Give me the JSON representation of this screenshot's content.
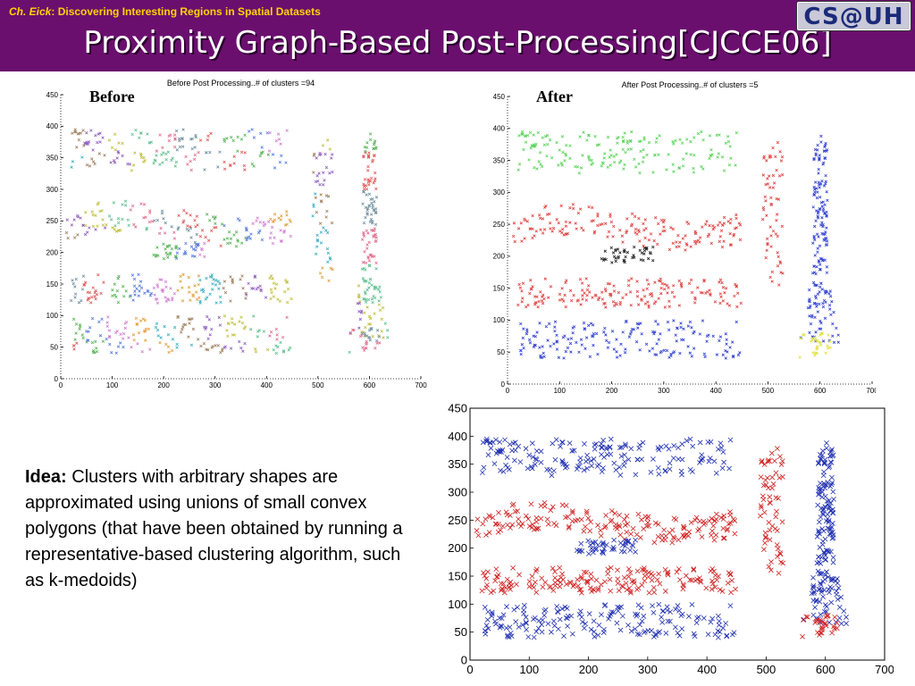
{
  "header": {
    "subtitle_author": "Ch. Eick",
    "subtitle_rest": ": Discovering Interesting Regions in Spatial Datasets",
    "title": "Proximity Graph-Based Post-Processing[CJCCE06]",
    "logo_text": "CS@UH"
  },
  "labels": {
    "before": "Before",
    "after": "After"
  },
  "idea": {
    "lead": "Idea:",
    "text": " Clusters with arbitrary shapes are approximated  using unions of small convex polygons (that have been obtained by running a representative-based clustering algorithm, such as k-medoids)"
  },
  "chart_data": [
    {
      "type": "scatter",
      "title": "Before Post Processing..# of clusters =94",
      "xlim": [
        0,
        700
      ],
      "ylim": [
        0,
        450
      ],
      "xticks": [
        0,
        100,
        200,
        300,
        400,
        500,
        600,
        700
      ],
      "yticks": [
        0,
        50,
        100,
        150,
        200,
        250,
        300,
        350,
        400,
        450
      ],
      "marker": "x",
      "num_clusters": 94,
      "series_note": "",
      "colors": [
        "#e05a5a",
        "#5ab45a",
        "#5a7be0",
        "#d080d0",
        "#e0a040",
        "#40b0c0",
        "#a08060",
        "#9060c0",
        "#c0c040",
        "#60c090",
        "#e07090",
        "#7090a0"
      ]
    },
    {
      "type": "scatter",
      "title": "After Post Processing..# of clusters =5",
      "xlim": [
        0,
        700
      ],
      "ylim": [
        0,
        450
      ],
      "xticks": [
        0,
        100,
        200,
        300,
        400,
        500,
        600,
        700
      ],
      "yticks": [
        0,
        50,
        100,
        150,
        200,
        250,
        300,
        350,
        400,
        450
      ],
      "marker": "x",
      "num_clusters": 5,
      "series_colors": {
        "top_band": "#5ad45a",
        "middle_bands": "#e04040",
        "small_cluster": "#222222",
        "bottom_band_and_tower": "#3040d0",
        "ring": "#e0e040"
      }
    },
    {
      "type": "scatter",
      "title": "",
      "xlim": [
        0,
        700
      ],
      "ylim": [
        0,
        450
      ],
      "xticks": [
        0,
        100,
        200,
        300,
        400,
        500,
        600,
        700
      ],
      "yticks": [
        0,
        50,
        100,
        150,
        200,
        250,
        300,
        350,
        400,
        450
      ],
      "marker": "x",
      "series_colors": {
        "blue": "#2030b0",
        "red": "#d02020"
      }
    }
  ],
  "regions": [
    {
      "name": "top-band",
      "x": [
        20,
        440
      ],
      "y": [
        330,
        395
      ],
      "group_after": "top_band",
      "group_orig": "blue"
    },
    {
      "name": "wave-band",
      "x": [
        10,
        450
      ],
      "y": [
        230,
        290
      ],
      "group_after": "middle_bands",
      "group_orig": "red"
    },
    {
      "name": "small-mid",
      "x": [
        180,
        280
      ],
      "y": [
        190,
        215
      ],
      "group_after": "small_cluster",
      "group_orig": "blue"
    },
    {
      "name": "lower-red",
      "x": [
        20,
        450
      ],
      "y": [
        120,
        165
      ],
      "group_after": "middle_bands",
      "group_orig": "red"
    },
    {
      "name": "bottom-band",
      "x": [
        20,
        450
      ],
      "y": [
        40,
        100
      ],
      "group_after": "bottom_band_and_tower",
      "group_orig": "blue"
    },
    {
      "name": "left-strip",
      "x": [
        490,
        530
      ],
      "y": [
        150,
        380
      ],
      "group_after": "middle_bands",
      "group_orig": "red"
    },
    {
      "name": "tower",
      "x": [
        550,
        640
      ],
      "y": [
        60,
        390
      ],
      "group_after": "bottom_band_and_tower",
      "group_orig": "blue"
    },
    {
      "name": "ring",
      "x": [
        560,
        620
      ],
      "y": [
        40,
        80
      ],
      "group_after": "ring",
      "group_orig": "red"
    }
  ]
}
